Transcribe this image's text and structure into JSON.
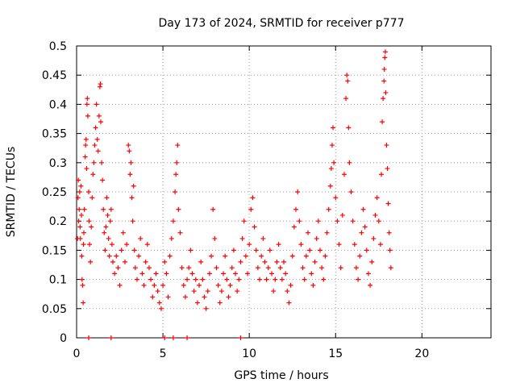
{
  "chart_data": {
    "type": "scatter",
    "title": "Day 173 of 2024, SRMTID for receiver p777",
    "xlabel": "GPS time / hours",
    "ylabel": "SRMTID / TECUs",
    "xlim": [
      0,
      24
    ],
    "ylim": [
      0,
      0.5
    ],
    "x_ticks": [
      0,
      5,
      10,
      15,
      20
    ],
    "x_tick_labels": [
      "0",
      "5",
      "10",
      "15",
      "20"
    ],
    "y_ticks": [
      0,
      0.05,
      0.1,
      0.15,
      0.2,
      0.25,
      0.3,
      0.35,
      0.4,
      0.45,
      0.5
    ],
    "y_tick_labels": [
      "0",
      "0.05",
      "0.1",
      "0.15",
      "0.2",
      "0.25",
      "0.3",
      "0.35",
      "0.4",
      "0.45",
      "0.5"
    ],
    "grid": true,
    "marker": "+",
    "color": "#ff0000",
    "series": [
      {
        "name": "SRMTID",
        "points": [
          [
            0.05,
            0.17
          ],
          [
            0.08,
            0.24
          ],
          [
            0.1,
            0.27
          ],
          [
            0.12,
            0.2
          ],
          [
            0.15,
            0.22
          ],
          [
            0.18,
            0.25
          ],
          [
            0.2,
            0.19
          ],
          [
            0.22,
            0.17
          ],
          [
            0.25,
            0.26
          ],
          [
            0.28,
            0.21
          ],
          [
            0.3,
            0.14
          ],
          [
            0.32,
            0.1
          ],
          [
            0.35,
            0.09
          ],
          [
            0.38,
            0.06
          ],
          [
            0.4,
            0.16
          ],
          [
            0.42,
            0.18
          ],
          [
            0.45,
            0.22
          ],
          [
            0.5,
            0.31
          ],
          [
            0.52,
            0.33
          ],
          [
            0.55,
            0.34
          ],
          [
            0.58,
            0.29
          ],
          [
            0.6,
            0.4
          ],
          [
            0.62,
            0.41
          ],
          [
            0.65,
            0.38
          ],
          [
            0.7,
            0.25
          ],
          [
            0.72,
            0.2
          ],
          [
            0.75,
            0.16
          ],
          [
            0.8,
            0.13
          ],
          [
            0.85,
            0.19
          ],
          [
            0.9,
            0.24
          ],
          [
            0.95,
            0.28
          ],
          [
            1.0,
            0.3
          ],
          [
            1.05,
            0.33
          ],
          [
            1.1,
            0.36
          ],
          [
            1.15,
            0.4
          ],
          [
            1.2,
            0.34
          ],
          [
            1.25,
            0.32
          ],
          [
            1.3,
            0.38
          ],
          [
            1.35,
            0.43
          ],
          [
            1.38,
            0.435
          ],
          [
            1.4,
            0.37
          ],
          [
            1.45,
            0.3
          ],
          [
            1.5,
            0.27
          ],
          [
            1.55,
            0.22
          ],
          [
            1.6,
            0.18
          ],
          [
            1.65,
            0.15
          ],
          [
            1.7,
            0.19
          ],
          [
            1.75,
            0.24
          ],
          [
            1.8,
            0.21
          ],
          [
            1.85,
            0.17
          ],
          [
            1.9,
            0.14
          ],
          [
            1.95,
            0.2
          ],
          [
            2.0,
            0.22
          ],
          [
            2.05,
            0.16
          ],
          [
            2.1,
            0.13
          ],
          [
            2.2,
            0.11
          ],
          [
            2.3,
            0.14
          ],
          [
            2.4,
            0.12
          ],
          [
            2.5,
            0.09
          ],
          [
            2.6,
            0.15
          ],
          [
            2.7,
            0.18
          ],
          [
            2.8,
            0.13
          ],
          [
            2.9,
            0.16
          ],
          [
            3.0,
            0.33
          ],
          [
            3.05,
            0.32
          ],
          [
            3.1,
            0.28
          ],
          [
            3.15,
            0.3
          ],
          [
            3.2,
            0.24
          ],
          [
            3.25,
            0.2
          ],
          [
            3.3,
            0.26
          ],
          [
            3.35,
            0.15
          ],
          [
            3.4,
            0.12
          ],
          [
            3.5,
            0.1
          ],
          [
            3.6,
            0.14
          ],
          [
            3.7,
            0.17
          ],
          [
            3.8,
            0.11
          ],
          [
            3.9,
            0.09
          ],
          [
            4.0,
            0.13
          ],
          [
            4.1,
            0.16
          ],
          [
            4.2,
            0.12
          ],
          [
            4.3,
            0.1
          ],
          [
            4.4,
            0.07
          ],
          [
            4.5,
            0.09
          ],
          [
            4.6,
            0.11
          ],
          [
            4.7,
            0.08
          ],
          [
            4.8,
            0.06
          ],
          [
            4.9,
            0.05
          ],
          [
            5.0,
            0.09
          ],
          [
            5.1,
            0.13
          ],
          [
            5.2,
            0.11
          ],
          [
            5.3,
            0.07
          ],
          [
            5.4,
            0.14
          ],
          [
            5.5,
            0.17
          ],
          [
            5.6,
            0.2
          ],
          [
            5.7,
            0.25
          ],
          [
            5.75,
            0.28
          ],
          [
            5.8,
            0.3
          ],
          [
            5.85,
            0.33
          ],
          [
            5.9,
            0.22
          ],
          [
            6.0,
            0.18
          ],
          [
            6.1,
            0.12
          ],
          [
            6.2,
            0.09
          ],
          [
            6.3,
            0.07
          ],
          [
            6.4,
            0.1
          ],
          [
            6.5,
            0.12
          ],
          [
            6.6,
            0.15
          ],
          [
            6.7,
            0.11
          ],
          [
            6.8,
            0.08
          ],
          [
            6.9,
            0.1
          ],
          [
            7.0,
            0.06
          ],
          [
            7.1,
            0.09
          ],
          [
            7.2,
            0.13
          ],
          [
            7.3,
            0.1
          ],
          [
            7.4,
            0.07
          ],
          [
            7.5,
            0.05
          ],
          [
            7.6,
            0.08
          ],
          [
            7.7,
            0.11
          ],
          [
            7.8,
            0.14
          ],
          [
            7.9,
            0.22
          ],
          [
            8.0,
            0.17
          ],
          [
            8.1,
            0.12
          ],
          [
            8.2,
            0.09
          ],
          [
            8.3,
            0.06
          ],
          [
            8.4,
            0.08
          ],
          [
            8.5,
            0.11
          ],
          [
            8.6,
            0.14
          ],
          [
            8.7,
            0.1
          ],
          [
            8.8,
            0.07
          ],
          [
            8.9,
            0.09
          ],
          [
            9.0,
            0.12
          ],
          [
            9.1,
            0.15
          ],
          [
            9.2,
            0.11
          ],
          [
            9.3,
            0.08
          ],
          [
            9.4,
            0.1
          ],
          [
            9.5,
            0.13
          ],
          [
            9.6,
            0.17
          ],
          [
            9.7,
            0.2
          ],
          [
            9.8,
            0.14
          ],
          [
            9.9,
            0.11
          ],
          [
            10.0,
            0.16
          ],
          [
            10.1,
            0.22
          ],
          [
            10.2,
            0.24
          ],
          [
            10.3,
            0.19
          ],
          [
            10.4,
            0.15
          ],
          [
            10.5,
            0.12
          ],
          [
            10.6,
            0.1
          ],
          [
            10.7,
            0.14
          ],
          [
            10.8,
            0.17
          ],
          [
            10.9,
            0.13
          ],
          [
            11.0,
            0.1
          ],
          [
            11.1,
            0.12
          ],
          [
            11.2,
            0.15
          ],
          [
            11.3,
            0.11
          ],
          [
            11.4,
            0.08
          ],
          [
            11.5,
            0.1
          ],
          [
            11.6,
            0.13
          ],
          [
            11.7,
            0.16
          ],
          [
            11.8,
            0.12
          ],
          [
            11.9,
            0.1
          ],
          [
            12.0,
            0.13
          ],
          [
            12.1,
            0.11
          ],
          [
            12.2,
            0.08
          ],
          [
            12.3,
            0.06
          ],
          [
            12.4,
            0.09
          ],
          [
            12.5,
            0.14
          ],
          [
            12.6,
            0.19
          ],
          [
            12.7,
            0.22
          ],
          [
            12.8,
            0.25
          ],
          [
            12.9,
            0.2
          ],
          [
            13.0,
            0.16
          ],
          [
            13.1,
            0.12
          ],
          [
            13.2,
            0.1
          ],
          [
            13.3,
            0.14
          ],
          [
            13.4,
            0.18
          ],
          [
            13.5,
            0.15
          ],
          [
            13.6,
            0.11
          ],
          [
            13.7,
            0.09
          ],
          [
            13.8,
            0.13
          ],
          [
            13.9,
            0.17
          ],
          [
            14.0,
            0.2
          ],
          [
            14.1,
            0.15
          ],
          [
            14.2,
            0.12
          ],
          [
            14.3,
            0.1
          ],
          [
            14.4,
            0.14
          ],
          [
            14.5,
            0.18
          ],
          [
            14.6,
            0.22
          ],
          [
            14.7,
            0.26
          ],
          [
            14.75,
            0.29
          ],
          [
            14.8,
            0.33
          ],
          [
            14.85,
            0.36
          ],
          [
            14.9,
            0.3
          ],
          [
            15.0,
            0.24
          ],
          [
            15.1,
            0.2
          ],
          [
            15.2,
            0.16
          ],
          [
            15.3,
            0.12
          ],
          [
            15.4,
            0.21
          ],
          [
            15.5,
            0.28
          ],
          [
            15.6,
            0.41
          ],
          [
            15.65,
            0.45
          ],
          [
            15.7,
            0.44
          ],
          [
            15.75,
            0.36
          ],
          [
            15.8,
            0.3
          ],
          [
            15.9,
            0.25
          ],
          [
            16.0,
            0.2
          ],
          [
            16.1,
            0.16
          ],
          [
            16.2,
            0.12
          ],
          [
            16.3,
            0.1
          ],
          [
            16.4,
            0.14
          ],
          [
            16.5,
            0.18
          ],
          [
            16.6,
            0.22
          ],
          [
            16.7,
            0.19
          ],
          [
            16.8,
            0.15
          ],
          [
            16.9,
            0.11
          ],
          [
            17.0,
            0.09
          ],
          [
            17.1,
            0.13
          ],
          [
            17.2,
            0.17
          ],
          [
            17.3,
            0.21
          ],
          [
            17.4,
            0.24
          ],
          [
            17.5,
            0.2
          ],
          [
            17.6,
            0.16
          ],
          [
            17.65,
            0.28
          ],
          [
            17.7,
            0.37
          ],
          [
            17.75,
            0.41
          ],
          [
            17.8,
            0.44
          ],
          [
            17.82,
            0.46
          ],
          [
            17.85,
            0.48
          ],
          [
            17.88,
            0.49
          ],
          [
            17.9,
            0.42
          ],
          [
            17.95,
            0.33
          ],
          [
            18.0,
            0.29
          ],
          [
            18.05,
            0.23
          ],
          [
            18.1,
            0.18
          ],
          [
            18.15,
            0.15
          ],
          [
            18.2,
            0.12
          ],
          [
            0.7,
            0.0
          ],
          [
            2.0,
            0.0
          ],
          [
            5.1,
            0.0
          ],
          [
            5.6,
            0.0
          ],
          [
            6.4,
            0.0
          ],
          [
            9.5,
            0.0
          ]
        ]
      }
    ]
  }
}
